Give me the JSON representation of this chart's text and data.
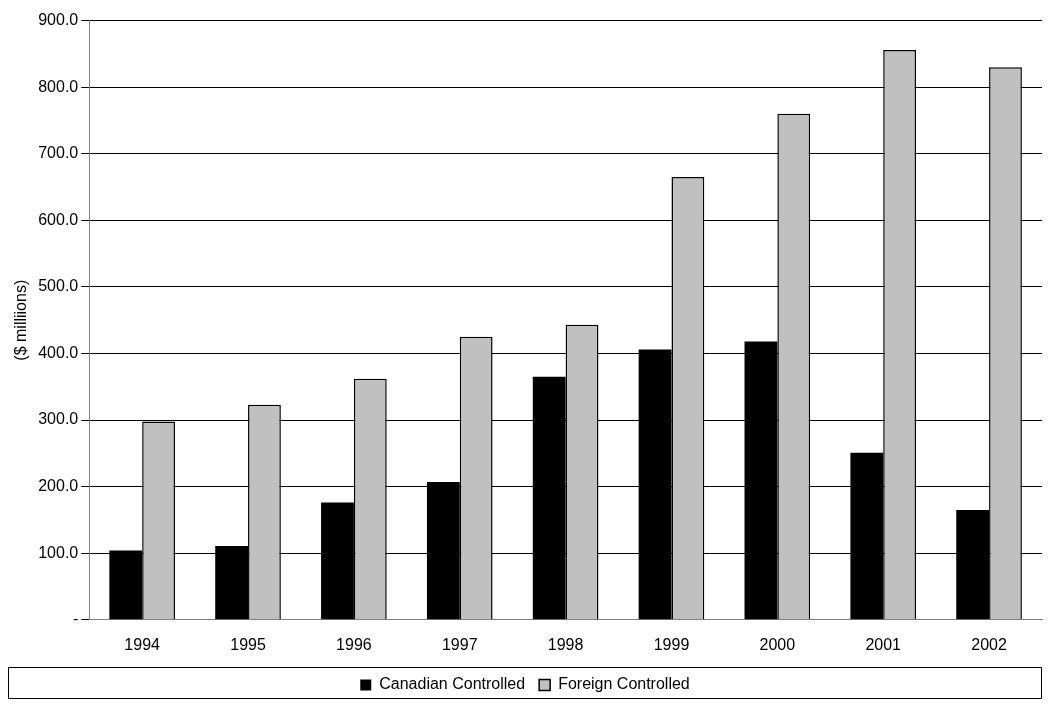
{
  "chart_data": {
    "type": "bar",
    "ylabel": "($ milliions)",
    "categories": [
      "1994",
      "1995",
      "1996",
      "1997",
      "1998",
      "1999",
      "2000",
      "2001",
      "2002"
    ],
    "series": [
      {
        "name": "Canadian Controlled",
        "color": "#000000",
        "values": [
          104,
          111,
          176,
          207,
          365,
          406,
          418,
          251,
          165
        ]
      },
      {
        "name": "Foreign Controlled",
        "color": "#c0c0c0",
        "values": [
          298,
          323,
          362,
          425,
          443,
          665,
          760,
          856,
          830
        ]
      }
    ],
    "ylim": [
      0,
      900
    ],
    "yticks": [
      {
        "value": 0,
        "label": "-"
      },
      {
        "value": 100,
        "label": "100.0"
      },
      {
        "value": 200,
        "label": "200.0"
      },
      {
        "value": 300,
        "label": "300.0"
      },
      {
        "value": 400,
        "label": "400.0"
      },
      {
        "value": 500,
        "label": "500.0"
      },
      {
        "value": 600,
        "label": "600.0"
      },
      {
        "value": 700,
        "label": "700.0"
      },
      {
        "value": 800,
        "label": "800.0"
      },
      {
        "value": 900,
        "label": "900.0"
      }
    ],
    "grid": "y",
    "legend": "bottom"
  }
}
